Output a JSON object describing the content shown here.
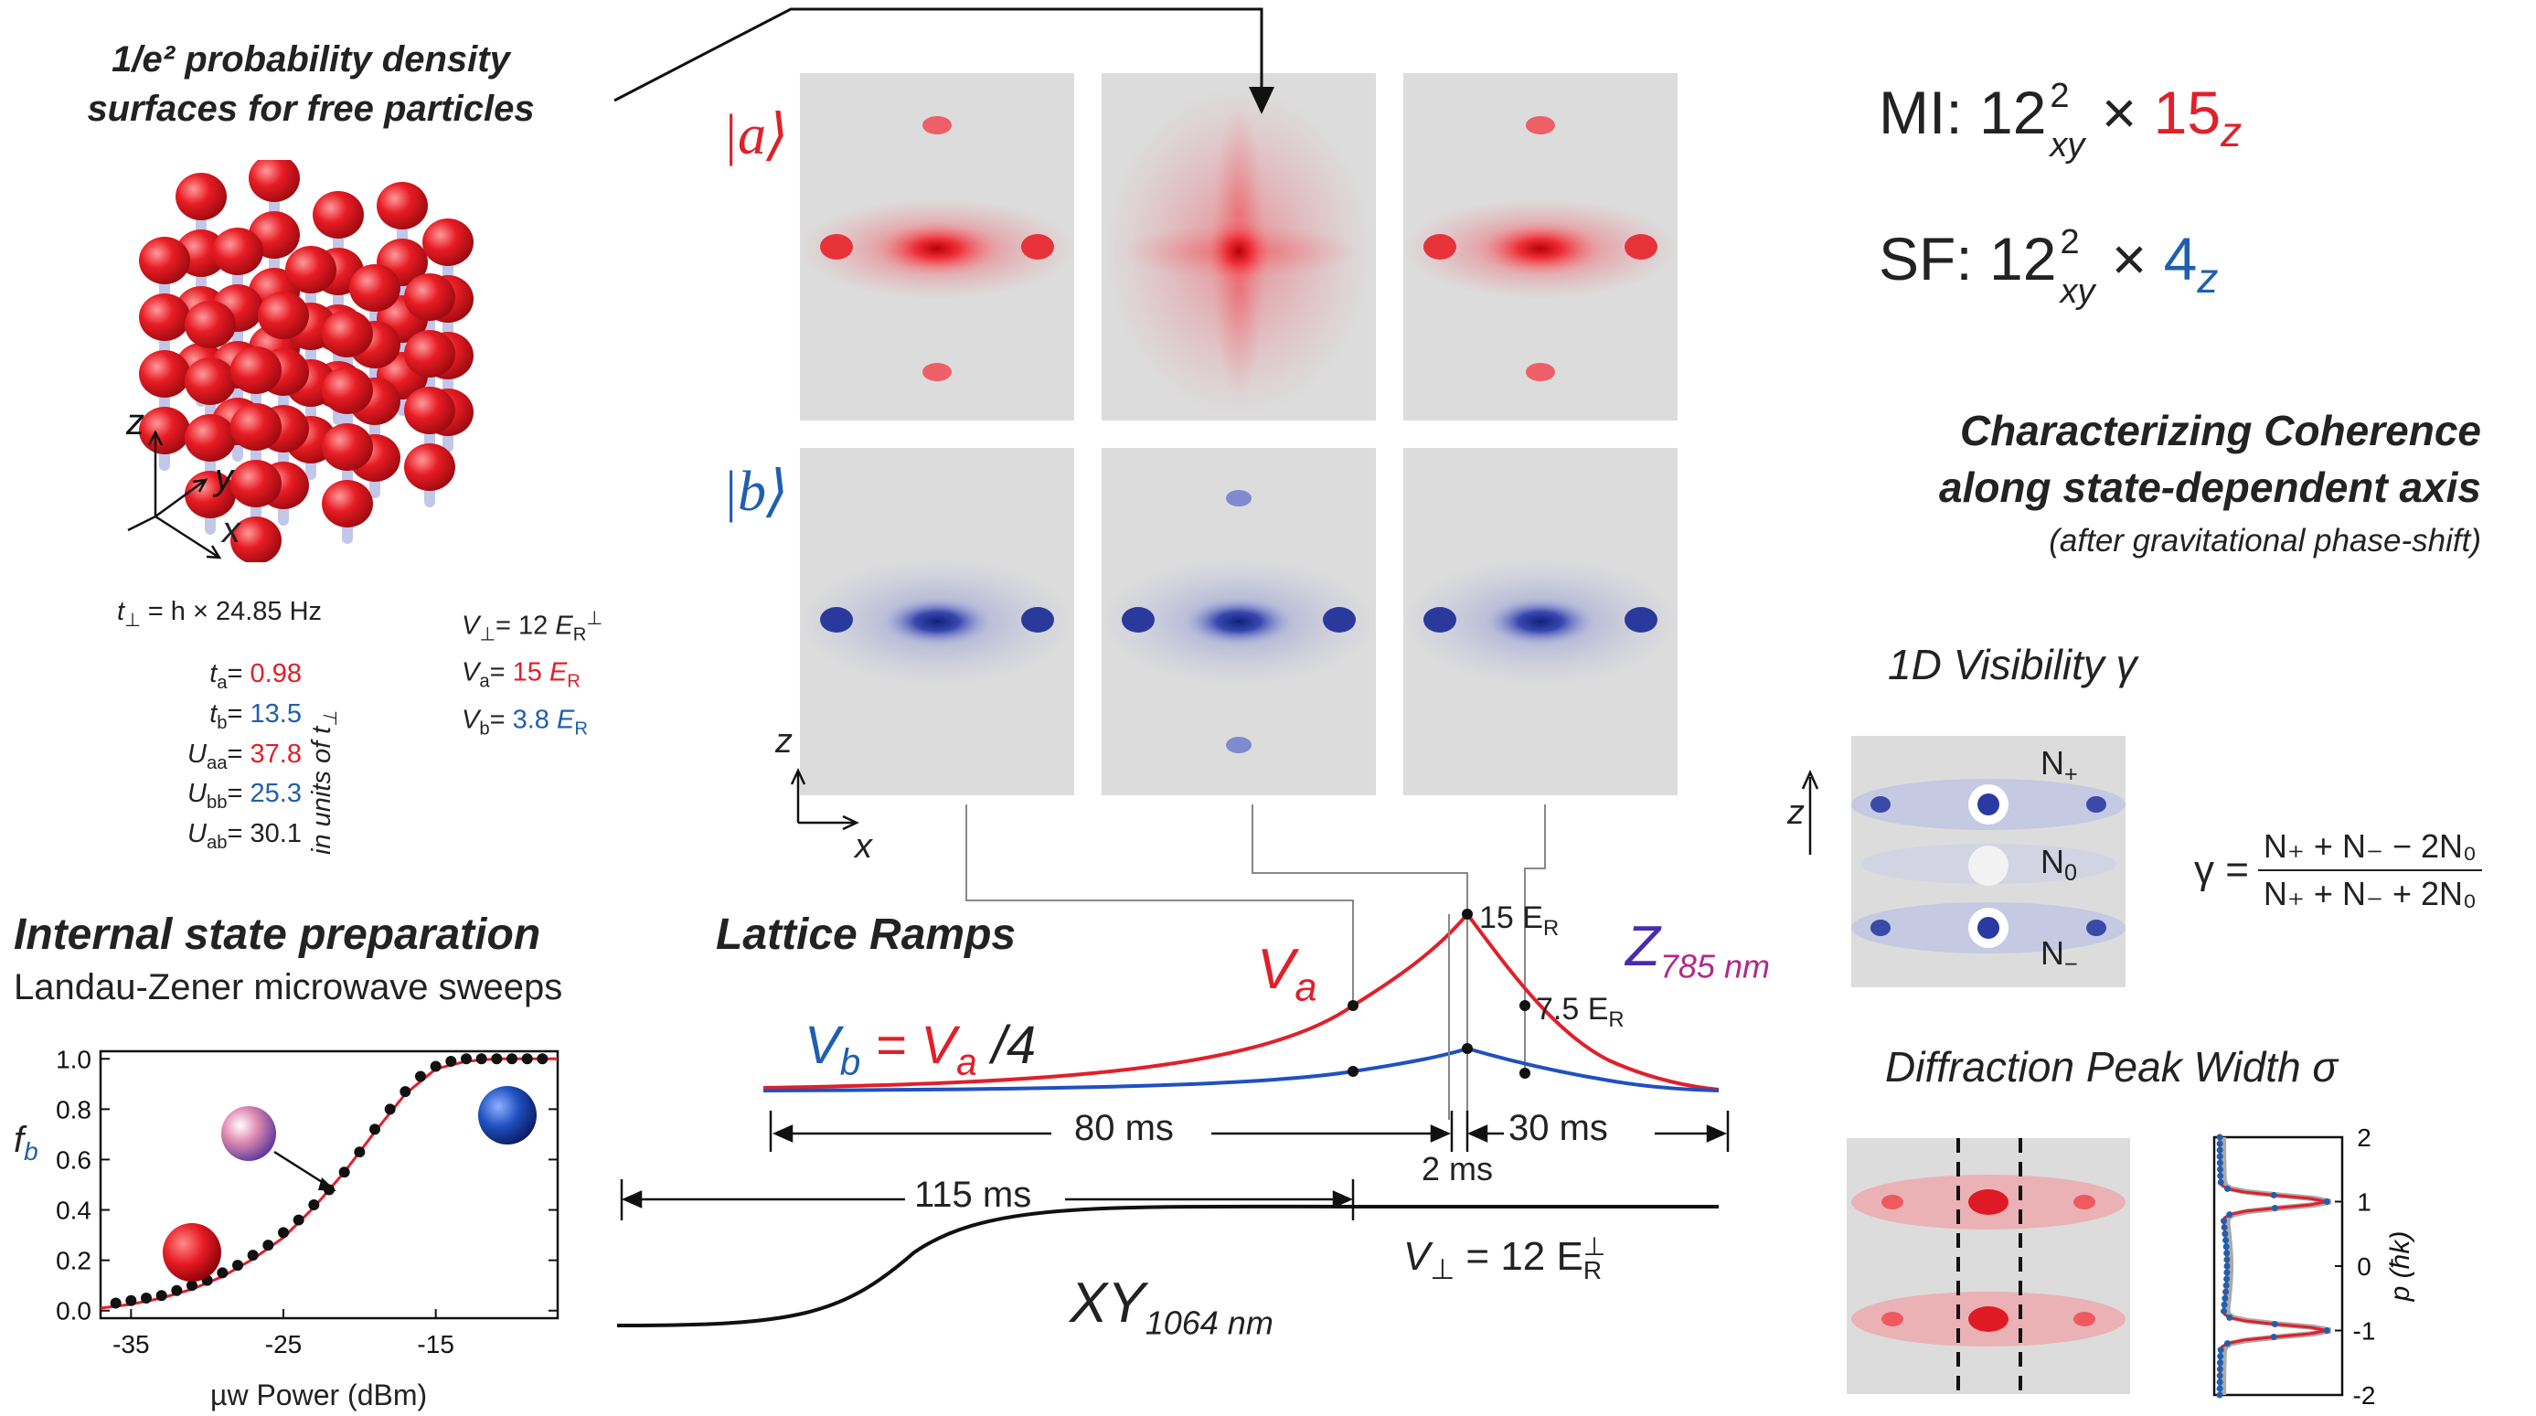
{
  "free_particles": {
    "title_line1": "1/e² probability density",
    "title_line2": "surfaces for free particles",
    "axes": {
      "z": "z",
      "y": "y",
      "x": "x"
    }
  },
  "params_left": {
    "t_perp": {
      "label": "t",
      "sub": "⊥",
      "eq": "= h × 24.85 Hz"
    },
    "rows": [
      {
        "label": "t",
        "sub": "a",
        "eq": "=",
        "value": "0.98",
        "color": "#e0202a"
      },
      {
        "label": "t",
        "sub": "b",
        "eq": "=",
        "value": "13.5",
        "color": "#1f5fae"
      },
      {
        "label": "U",
        "sub": "aa",
        "eq": "=",
        "value": "37.8",
        "color": "#e0202a"
      },
      {
        "label": "U",
        "sub": "bb",
        "eq": "=",
        "value": "25.3",
        "color": "#1f5fae"
      },
      {
        "label": "U",
        "sub": "ab",
        "eq": "=",
        "value": "30.1",
        "color": "#222222"
      }
    ],
    "units_note": "in units of t",
    "units_sub": "⊥"
  },
  "params_right": {
    "rows": [
      {
        "label": "V",
        "sub": "⊥",
        "eq": "=",
        "value": "12",
        "unit": "E",
        "unit_sub": "R",
        "unit_sup": "⊥",
        "color": "#222222"
      },
      {
        "label": "V",
        "sub": "a",
        "eq": "=",
        "value": "15",
        "unit": "E",
        "unit_sub": "R",
        "unit_sup": "",
        "color": "#e0202a"
      },
      {
        "label": "V",
        "sub": "b",
        "eq": "=",
        "value": "3.8",
        "unit": "E",
        "unit_sub": "R",
        "unit_sup": "",
        "color": "#1f5fae"
      }
    ]
  },
  "state_labels": {
    "a": "|a⟩",
    "b": "|b⟩"
  },
  "image_axes": {
    "z": "z",
    "x": "x"
  },
  "mi_sf": {
    "mi_prefix": "MI: 12",
    "mi_sup": "2",
    "mi_sub": "xy",
    "mi_times": "×",
    "mi_red": "15",
    "mi_red_sub": "z",
    "sf_prefix": "SF:  12",
    "sf_sup": "2",
    "sf_sub": "xy",
    "sf_times": "×",
    "sf_blue": "4",
    "sf_blue_sub": "z"
  },
  "coherence": {
    "title_line1": "Characterizing Coherence",
    "title_line2": "along state-dependent axis",
    "subtitle": "(after gravitational phase-shift)"
  },
  "visibility": {
    "title": "1D Visibility γ",
    "axis": "z",
    "n_plus": "N",
    "n_plus_sub": "+",
    "n_zero": "N",
    "n_zero_sub": "0",
    "n_minus": "N",
    "n_minus_sub": "−",
    "formula_lhs": "γ =",
    "formula_num": "N₊ + N₋ − 2N₀",
    "formula_den": "N₊ + N₋ + 2N₀"
  },
  "peak_width": {
    "title": "Diffraction Peak Width σ",
    "axis_label": "p (ħk)",
    "ticks": [
      "2",
      "1",
      "0",
      "-1",
      "-2"
    ]
  },
  "internal_state": {
    "title": "Internal state preparation",
    "subtitle": "Landau-Zener microwave sweeps"
  },
  "lattice": {
    "title": "Lattice Ramps",
    "va_label": "V",
    "va_sub": "a",
    "vb_eq_lhs": "V",
    "vb_eq_lhs_sub": "b",
    "vb_eq_mid": " = V",
    "vb_eq_mid_sub": "a",
    "vb_eq_rhs": " /4",
    "z_label": "Z",
    "z_sub": "785 nm",
    "xy_label": "XY",
    "xy_sub": "1064 nm",
    "peak_label": "15 E",
    "peak_sub": "R",
    "mid_label": "7.5 E",
    "mid_sub": "R",
    "vperp_label": "V",
    "vperp_sub": "⊥",
    "vperp_eq": " = 12 E",
    "vperp_unit_sub": "R",
    "vperp_unit_sup": "⊥",
    "dur_80": "80 ms",
    "dur_2": "2 ms",
    "dur_30": "30 ms",
    "dur_115": "115 ms"
  },
  "chart_data": {
    "type": "scatter",
    "xlabel": "µw Power (dBm)",
    "ylabel": "f",
    "ylabel_sub": "b",
    "xlim": [
      -37,
      -7
    ],
    "ylim": [
      -0.03,
      1.03
    ],
    "xticks": [
      -35,
      -25,
      -15
    ],
    "yticks": [
      0.0,
      0.2,
      0.4,
      0.6,
      0.8,
      1.0
    ],
    "ytick_labels": [
      "0.0",
      "0.2",
      "0.4",
      "0.6",
      "0.8",
      "1.0"
    ],
    "x": [
      -36,
      -35,
      -34,
      -33,
      -32,
      -31,
      -30,
      -29,
      -28,
      -27,
      -26,
      -25,
      -24,
      -23,
      -22,
      -21,
      -20,
      -19,
      -18,
      -17,
      -16,
      -15,
      -14,
      -13,
      -12,
      -11,
      -10,
      -9,
      -8
    ],
    "y": [
      0.03,
      0.04,
      0.05,
      0.06,
      0.08,
      0.1,
      0.12,
      0.15,
      0.18,
      0.22,
      0.26,
      0.31,
      0.36,
      0.42,
      0.48,
      0.55,
      0.63,
      0.72,
      0.8,
      0.87,
      0.93,
      0.97,
      0.99,
      1.0,
      1.0,
      1.0,
      1.0,
      1.0,
      1.0
    ],
    "fit_x": [
      -37,
      -35,
      -33,
      -31,
      -29,
      -27,
      -25,
      -23,
      -21,
      -19,
      -17,
      -15,
      -13,
      -11,
      -9,
      -7
    ],
    "fit_y": [
      0.01,
      0.025,
      0.05,
      0.085,
      0.135,
      0.205,
      0.29,
      0.41,
      0.55,
      0.71,
      0.86,
      0.96,
      0.99,
      1.0,
      1.0,
      1.0
    ]
  },
  "colors": {
    "red": "#e0202a",
    "blue": "#1f5fae",
    "purple": "#6a2bb0",
    "panel": "#d9d9d9"
  }
}
